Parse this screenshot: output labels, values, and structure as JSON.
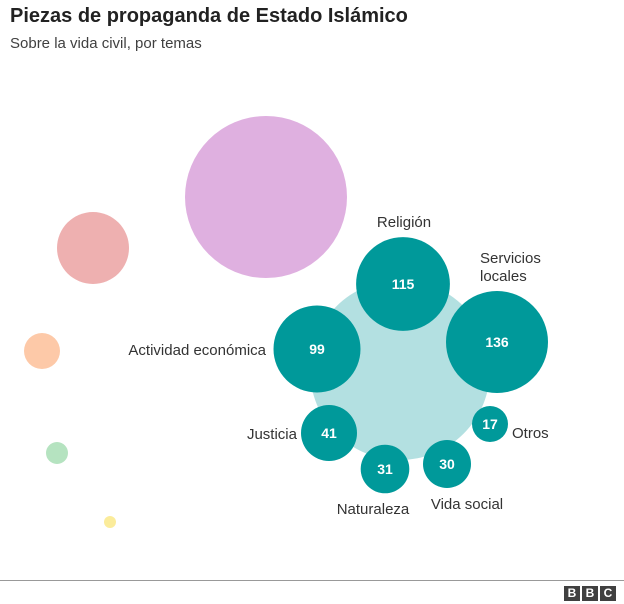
{
  "title": "Piezas de propaganda de Estado Islámico",
  "subtitle": "Sobre la vida civil, por temas",
  "logo": [
    "B",
    "B",
    "C"
  ],
  "chart_data": {
    "type": "bubble",
    "title": "Piezas de propaganda de Estado Islámico",
    "subtitle": "Sobre la vida civil, por temas",
    "parent_color": "#b3e0e1",
    "series": [
      {
        "name": "Religión",
        "value": 115,
        "label_lines": [
          "Religión"
        ]
      },
      {
        "name": "Servicios locales",
        "value": 136,
        "label_lines": [
          "Servicios",
          "locales"
        ]
      },
      {
        "name": "Actividad económica",
        "value": 99,
        "label_lines": [
          "Actividad económica"
        ]
      },
      {
        "name": "Justicia",
        "value": 41,
        "label_lines": [
          "Justicia"
        ]
      },
      {
        "name": "Naturaleza",
        "value": 31,
        "label_lines": [
          "Naturaleza"
        ]
      },
      {
        "name": "Vida social",
        "value": 30,
        "label_lines": [
          "Vida social"
        ]
      },
      {
        "name": "Otros",
        "value": 17,
        "label_lines": [
          "Otros"
        ]
      }
    ],
    "bubble_color": "#00999a",
    "other_groups": [
      {
        "color": "#dfb0e0"
      },
      {
        "color": "#eeb0b0"
      },
      {
        "color": "#fdc9a8"
      },
      {
        "color": "#b5e3c0"
      },
      {
        "color": "#fbec9b"
      }
    ]
  }
}
